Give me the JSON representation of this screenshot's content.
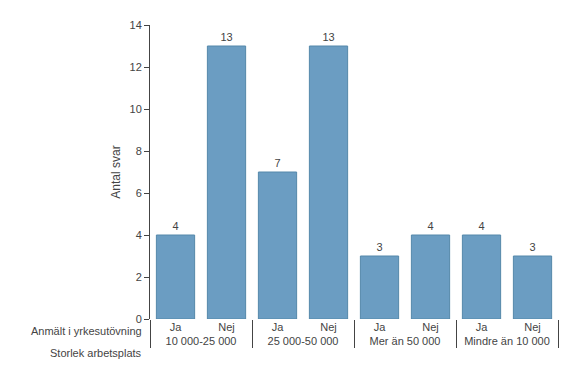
{
  "chart_data": {
    "type": "bar",
    "categories": [
      "10 000-25 000",
      "25 000-50 000",
      "Mer än 50 000",
      "Mindre än 10 000"
    ],
    "series": [
      {
        "name": "Ja",
        "color": "#6b9dc2",
        "values": [
          4,
          7,
          3,
          4
        ]
      },
      {
        "name": "Nej",
        "color": "#6b9dc2",
        "values": [
          13,
          13,
          4,
          3
        ]
      }
    ],
    "ylabel": "Antal svar",
    "annotations": [
      "Anmält i yrkesutövning",
      "Storlek arbetsplats"
    ],
    "ylim": [
      0,
      14
    ],
    "yticks": [
      0,
      2,
      4,
      6,
      8,
      10,
      12,
      14
    ],
    "grid": false,
    "data_labels": true
  }
}
